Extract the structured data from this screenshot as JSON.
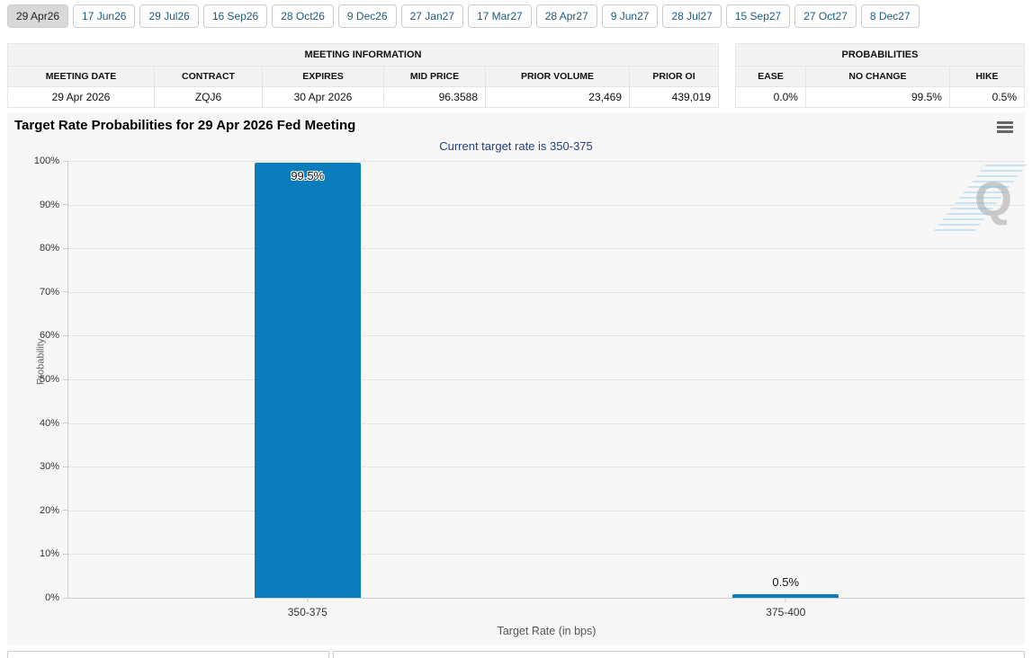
{
  "tabs": {
    "items": [
      {
        "label": "29 Apr26",
        "active": true
      },
      {
        "label": "17 Jun26",
        "active": false
      },
      {
        "label": "29 Jul26",
        "active": false
      },
      {
        "label": "16 Sep26",
        "active": false
      },
      {
        "label": "28 Oct26",
        "active": false
      },
      {
        "label": "9 Dec26",
        "active": false
      },
      {
        "label": "27 Jan27",
        "active": false
      },
      {
        "label": "17 Mar27",
        "active": false
      },
      {
        "label": "28 Apr27",
        "active": false
      },
      {
        "label": "9 Jun27",
        "active": false
      },
      {
        "label": "28 Jul27",
        "active": false
      },
      {
        "label": "15 Sep27",
        "active": false
      },
      {
        "label": "27 Oct27",
        "active": false
      },
      {
        "label": "8 Dec27",
        "active": false
      }
    ]
  },
  "meeting_information": {
    "title": "MEETING INFORMATION",
    "columns": [
      "MEETING DATE",
      "CONTRACT",
      "EXPIRES",
      "MID PRICE",
      "PRIOR VOLUME",
      "PRIOR OI"
    ],
    "row": [
      "29 Apr 2026",
      "ZQJ6",
      "30 Apr 2026",
      "96.3588",
      "23,469",
      "439,019"
    ]
  },
  "probabilities": {
    "title": "PROBABILITIES",
    "columns": [
      "EASE",
      "NO CHANGE",
      "HIKE"
    ],
    "row": [
      "0.0%",
      "99.5%",
      "0.5%"
    ]
  },
  "chart_data": {
    "type": "bar",
    "title": "Target Rate Probabilities for 29 Apr 2026 Fed Meeting",
    "subtitle": "Current target rate is 350-375",
    "categories": [
      "350-375",
      "375-400"
    ],
    "values": [
      99.5,
      0.5
    ],
    "value_labels": [
      "99.5%",
      "0.5%"
    ],
    "xlabel": "Target Rate (in bps)",
    "ylabel": "Probability",
    "ylim": [
      0,
      100
    ],
    "yticks": [
      "0%",
      "10%",
      "20%",
      "30%",
      "40%",
      "50%",
      "60%",
      "70%",
      "80%",
      "90%",
      "100%"
    ],
    "grid": true,
    "legend": false,
    "bar_color": "#0b7dbd"
  },
  "icons": {
    "menu": "hamburger-menu",
    "watermark_letter": "Q"
  },
  "colors": {
    "bar": "#0b7dbd",
    "subtitle_text": "#27417a",
    "tab_text": "#1e5b7e",
    "chart_background": "#f7f7f7",
    "table_header_background": "#f3f3f3"
  }
}
